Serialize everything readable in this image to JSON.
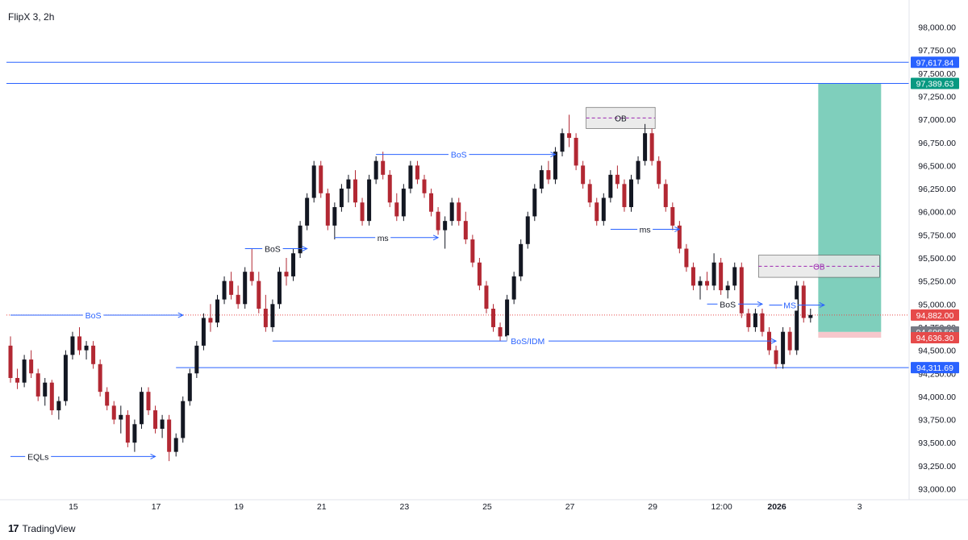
{
  "header": {
    "symbol_title": "FlipX 3, 2h"
  },
  "footer": {
    "brand": "TradingView",
    "logo_glyph": "17"
  },
  "colors": {
    "up": "#131722",
    "down": "#b22833",
    "blue": "#2962ff",
    "tp_zone": "#7fcfbc",
    "sl_zone": "#f7c7cc",
    "ob_fill": "#e8e8e8",
    "ob_dash": "#9c27b0",
    "current_line": "#e64a4a"
  },
  "chart_data": {
    "type": "candlestick",
    "title": "FlipX 3, 2h",
    "y_ticks": [
      "98,000.00",
      "97,750.00",
      "97,500.00",
      "97,250.00",
      "97,000.00",
      "96,750.00",
      "96,500.00",
      "96,250.00",
      "96,000.00",
      "95,750.00",
      "95,500.00",
      "95,250.00",
      "95,000.00",
      "94,750.00",
      "94,500.00",
      "94,250.00",
      "94,000.00",
      "93,750.00",
      "93,500.00",
      "93,250.00",
      "93,000.00"
    ],
    "y_tick_values": [
      98000,
      97750,
      97500,
      97250,
      97000,
      96750,
      96500,
      96250,
      96000,
      95750,
      95500,
      95250,
      95000,
      94750,
      94500,
      94250,
      94000,
      93750,
      93500,
      93250,
      93000
    ],
    "x_ticks": [
      "15",
      "17",
      "19",
      "21",
      "23",
      "25",
      "27",
      "29",
      "12:00",
      "2026",
      "3"
    ],
    "x_tick_bars": [
      9,
      21,
      33,
      45,
      57,
      69,
      81,
      93,
      103,
      111,
      123
    ],
    "ylim": [
      92900,
      98200
    ],
    "price_labels": [
      {
        "text": "97,617.84",
        "value": 97617.84,
        "color": "#2962ff"
      },
      {
        "text": "97,389.63",
        "value": 97389.63,
        "color": "#089981"
      },
      {
        "text": "94,882.00",
        "value": 94882.0,
        "color": "#e64a4a"
      },
      {
        "text": "94,698.50",
        "value": 94698.5,
        "color": "#787b86"
      },
      {
        "text": "94,636.30",
        "value": 94636.3,
        "color": "#e64a4a"
      },
      {
        "text": "94,311.69",
        "value": 94311.69,
        "color": "#2962ff"
      }
    ],
    "annotations": [
      {
        "label": "BoS",
        "value": 94880,
        "bar_from": 0,
        "bar_to": 25,
        "label_bar": 12
      },
      {
        "label": "EQLs",
        "value": 93350,
        "bar_from": 0,
        "bar_to": 21,
        "label_bar": 4
      },
      {
        "label": "BoS",
        "value": 95600,
        "bar_from": 34,
        "bar_to": 43,
        "label_bar": 38
      },
      {
        "label": "ms",
        "value": 95720,
        "bar_from": 47,
        "bar_to": 62,
        "label_bar": 54
      },
      {
        "label": "BoS",
        "value": 96620,
        "bar_from": 53,
        "bar_to": 79,
        "label_bar": 65
      },
      {
        "label": "BoS/IDM",
        "value": 94600,
        "bar_from": 38,
        "bar_to": 111,
        "label_bar": 75
      },
      {
        "label": "ms",
        "value": 95810,
        "bar_from": 87,
        "bar_to": 97,
        "label_bar": 92
      },
      {
        "label": "BoS",
        "value": 95000,
        "bar_from": 101,
        "bar_to": 109,
        "label_bar": 104
      },
      {
        "label": "MS",
        "value": 94990,
        "bar_from": 110,
        "bar_to": 118,
        "label_bar": 113
      }
    ],
    "order_blocks": [
      {
        "label": "OB",
        "high": 97130,
        "low": 96900,
        "bar_from": 83,
        "bar_to": 93
      },
      {
        "label": "OB",
        "high": 95530,
        "low": 95290,
        "bar_from": 108,
        "bar_to": 126
      }
    ],
    "horizontal_lines": [
      {
        "value": 97617.84,
        "color": "#2962ff"
      },
      {
        "value": 97389.63,
        "color": "#2962ff"
      },
      {
        "value": 94311.69,
        "color": "#2962ff",
        "bar_from": 24
      }
    ],
    "position": {
      "entry": 94698.5,
      "target": 97389.63,
      "stop": 94636.3,
      "bar_from": 117,
      "bar_to": 126
    },
    "current_price": 94882.0,
    "candles": [
      [
        94550,
        94650,
        94150,
        94200
      ],
      [
        94200,
        94300,
        94080,
        94150
      ],
      [
        94150,
        94450,
        94100,
        94400
      ],
      [
        94400,
        94500,
        94200,
        94250
      ],
      [
        94250,
        94300,
        93950,
        94000
      ],
      [
        94000,
        94200,
        93900,
        94150
      ],
      [
        94150,
        94180,
        93800,
        93850
      ],
      [
        93850,
        94000,
        93750,
        93950
      ],
      [
        93950,
        94500,
        93900,
        94450
      ],
      [
        94450,
        94700,
        94400,
        94650
      ],
      [
        94650,
        94750,
        94450,
        94500
      ],
      [
        94500,
        94600,
        94400,
        94550
      ],
      [
        94550,
        94600,
        94300,
        94350
      ],
      [
        94350,
        94400,
        94000,
        94050
      ],
      [
        94050,
        94100,
        93850,
        93900
      ],
      [
        93900,
        93950,
        93700,
        93750
      ],
      [
        93750,
        93900,
        93600,
        93800
      ],
      [
        93800,
        93850,
        93450,
        93500
      ],
      [
        93500,
        93750,
        93400,
        93700
      ],
      [
        93700,
        94100,
        93650,
        94050
      ],
      [
        94050,
        94100,
        93800,
        93850
      ],
      [
        93850,
        93900,
        93600,
        93650
      ],
      [
        93650,
        93800,
        93550,
        93750
      ],
      [
        93750,
        93800,
        93300,
        93400
      ],
      [
        93400,
        93600,
        93350,
        93550
      ],
      [
        93550,
        94000,
        93500,
        93950
      ],
      [
        93950,
        94300,
        93900,
        94250
      ],
      [
        94250,
        94600,
        94200,
        94550
      ],
      [
        94550,
        94900,
        94500,
        94850
      ],
      [
        94850,
        95000,
        94700,
        94800
      ],
      [
        94800,
        95100,
        94750,
        95050
      ],
      [
        95050,
        95300,
        95000,
        95250
      ],
      [
        95250,
        95350,
        95050,
        95100
      ],
      [
        95100,
        95200,
        94950,
        95000
      ],
      [
        95000,
        95400,
        94950,
        95350
      ],
      [
        95350,
        95600,
        95200,
        95250
      ],
      [
        95250,
        95350,
        94900,
        94950
      ],
      [
        94950,
        95100,
        94700,
        94750
      ],
      [
        94750,
        95050,
        94700,
        95000
      ],
      [
        95000,
        95400,
        94950,
        95350
      ],
      [
        95350,
        95500,
        95200,
        95300
      ],
      [
        95300,
        95600,
        95250,
        95550
      ],
      [
        95550,
        95900,
        95500,
        95850
      ],
      [
        95850,
        96200,
        95800,
        96150
      ],
      [
        96150,
        96550,
        96100,
        96500
      ],
      [
        96500,
        96550,
        96150,
        96200
      ],
      [
        96200,
        96250,
        95800,
        95850
      ],
      [
        95850,
        96100,
        95700,
        96050
      ],
      [
        96050,
        96300,
        96000,
        96250
      ],
      [
        96250,
        96400,
        96100,
        96350
      ],
      [
        96350,
        96450,
        96050,
        96100
      ],
      [
        96100,
        96150,
        95850,
        95900
      ],
      [
        95900,
        96400,
        95850,
        96350
      ],
      [
        96350,
        96600,
        96300,
        96550
      ],
      [
        96550,
        96650,
        96350,
        96400
      ],
      [
        96400,
        96450,
        96050,
        96100
      ],
      [
        96100,
        96200,
        95900,
        95950
      ],
      [
        95950,
        96300,
        95900,
        96250
      ],
      [
        96250,
        96550,
        96200,
        96500
      ],
      [
        96500,
        96550,
        96300,
        96350
      ],
      [
        96350,
        96400,
        96150,
        96200
      ],
      [
        96200,
        96250,
        95950,
        96000
      ],
      [
        96000,
        96050,
        95750,
        95800
      ],
      [
        95800,
        95950,
        95600,
        95900
      ],
      [
        95900,
        96150,
        95850,
        96100
      ],
      [
        96100,
        96150,
        95850,
        95900
      ],
      [
        95900,
        96000,
        95650,
        95700
      ],
      [
        95700,
        95750,
        95400,
        95450
      ],
      [
        95450,
        95500,
        95150,
        95200
      ],
      [
        95200,
        95250,
        94900,
        94950
      ],
      [
        94950,
        95000,
        94700,
        94750
      ],
      [
        94750,
        94800,
        94600,
        94650
      ],
      [
        94650,
        95100,
        94600,
        95050
      ],
      [
        95050,
        95350,
        95000,
        95300
      ],
      [
        95300,
        95700,
        95250,
        95650
      ],
      [
        95650,
        96000,
        95600,
        95950
      ],
      [
        95950,
        96300,
        95900,
        96250
      ],
      [
        96250,
        96500,
        96200,
        96450
      ],
      [
        96450,
        96550,
        96300,
        96350
      ],
      [
        96350,
        96700,
        96300,
        96650
      ],
      [
        96650,
        96900,
        96600,
        96850
      ],
      [
        96850,
        97050,
        96700,
        96800
      ],
      [
        96800,
        96850,
        96450,
        96500
      ],
      [
        96500,
        96550,
        96250,
        96300
      ],
      [
        96300,
        96350,
        96050,
        96100
      ],
      [
        96100,
        96150,
        95850,
        95900
      ],
      [
        95900,
        96200,
        95850,
        96150
      ],
      [
        96150,
        96450,
        96100,
        96400
      ],
      [
        96400,
        96500,
        96250,
        96300
      ],
      [
        96300,
        96350,
        96000,
        96050
      ],
      [
        96050,
        96400,
        96000,
        96350
      ],
      [
        96350,
        96600,
        96300,
        96550
      ],
      [
        96550,
        96950,
        96500,
        96850
      ],
      [
        96850,
        96900,
        96500,
        96550
      ],
      [
        96550,
        96600,
        96250,
        96300
      ],
      [
        96300,
        96350,
        96000,
        96050
      ],
      [
        96050,
        96100,
        95800,
        95850
      ],
      [
        95850,
        95900,
        95550,
        95600
      ],
      [
        95600,
        95650,
        95350,
        95400
      ],
      [
        95400,
        95450,
        95150,
        95200
      ],
      [
        95200,
        95300,
        95050,
        95250
      ],
      [
        95250,
        95350,
        95150,
        95200
      ],
      [
        95200,
        95550,
        95150,
        95450
      ],
      [
        95450,
        95500,
        95100,
        95150
      ],
      [
        95150,
        95250,
        95050,
        95200
      ],
      [
        95200,
        95450,
        95150,
        95400
      ],
      [
        95400,
        95450,
        94850,
        94900
      ],
      [
        94900,
        94950,
        94700,
        94750
      ],
      [
        94750,
        94950,
        94700,
        94900
      ],
      [
        94900,
        94950,
        94650,
        94700
      ],
      [
        94700,
        94750,
        94450,
        94500
      ],
      [
        94500,
        94550,
        94300,
        94350
      ],
      [
        94350,
        94750,
        94300,
        94700
      ],
      [
        94700,
        94750,
        94450,
        94500
      ],
      [
        94500,
        95250,
        94450,
        95200
      ],
      [
        95200,
        95250,
        94800,
        94850
      ],
      [
        94850,
        94950,
        94800,
        94882
      ]
    ]
  }
}
